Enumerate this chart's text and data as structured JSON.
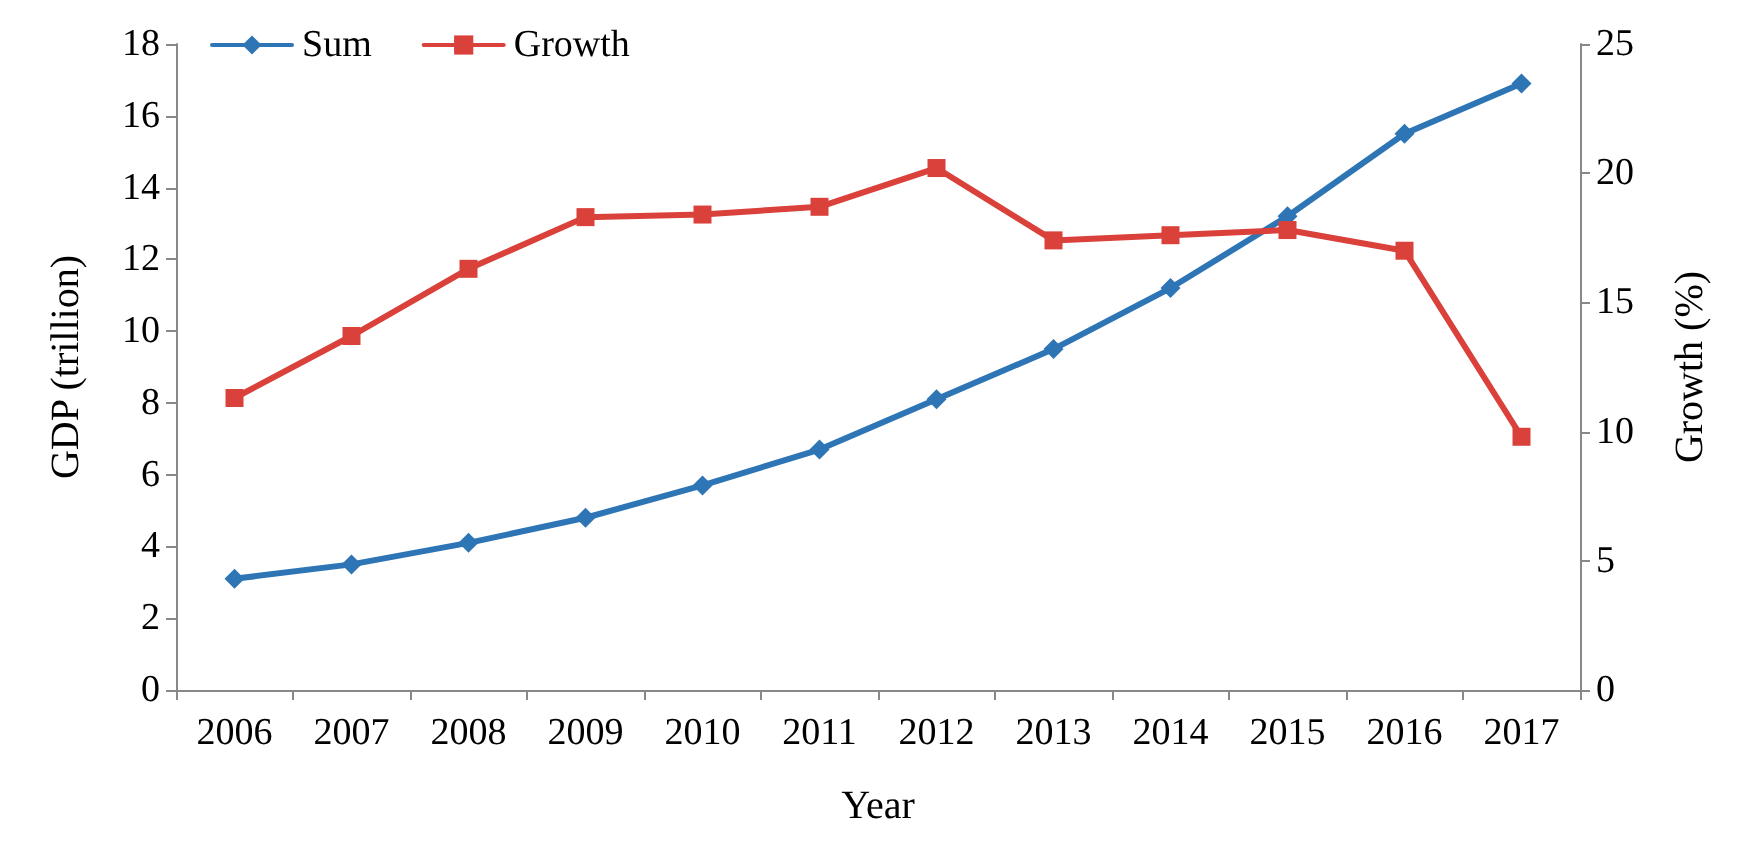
{
  "chart_data": {
    "type": "line",
    "xlabel": "Year",
    "ylabel": "GDP (trillion)",
    "y2label": "Growth (%)",
    "categories": [
      "2006",
      "2007",
      "2008",
      "2009",
      "2010",
      "2011",
      "2012",
      "2013",
      "2014",
      "2015",
      "2016",
      "2017"
    ],
    "series": [
      {
        "name": "Sum",
        "color": "#2e75b6",
        "marker": "diamond",
        "values": [
          3.1,
          3.5,
          4.1,
          4.8,
          5.7,
          6.7,
          8.1,
          9.5,
          11.2,
          13.2,
          15.5,
          16.9
        ]
      },
      {
        "name": "Growth",
        "color": "#d9413a",
        "marker": "square",
        "axis": "y2",
        "values": [
          11.3,
          13.7,
          16.3,
          18.3,
          18.4,
          18.7,
          20.2,
          17.4,
          17.6,
          17.8,
          17.0,
          9.8
        ]
      }
    ],
    "ylim": [
      0,
      18
    ],
    "yticks": [
      0,
      2,
      4,
      6,
      8,
      10,
      12,
      14,
      16,
      18
    ],
    "y2lim": [
      0,
      25
    ],
    "y2ticks": [
      0,
      5,
      10,
      15,
      20,
      25
    ],
    "grid": false,
    "legend": "top left",
    "line_style": "solid"
  }
}
